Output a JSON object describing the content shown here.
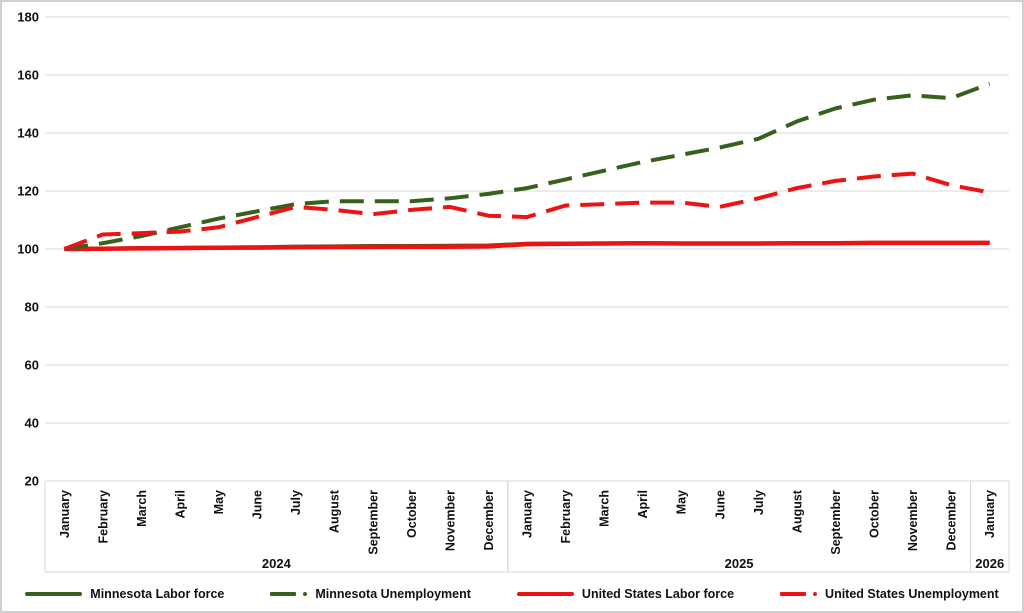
{
  "chart_data": {
    "type": "line",
    "title": "",
    "xlabel": "",
    "ylabel": "",
    "ylim": [
      20,
      180
    ],
    "y_ticks": [
      180,
      160,
      140,
      120,
      100,
      80,
      60,
      40,
      20
    ],
    "grid": true,
    "legend_position": "bottom",
    "x_categories": [
      "January",
      "February",
      "March",
      "April",
      "May",
      "June",
      "July",
      "August",
      "September",
      "October",
      "November",
      "December",
      "January",
      "February",
      "March",
      "April",
      "May",
      "June",
      "July",
      "August",
      "September",
      "October",
      "November",
      "December",
      "January"
    ],
    "year_groups": [
      {
        "label": "2024",
        "months": 12
      },
      {
        "label": "2025",
        "months": 12
      },
      {
        "label": "2026",
        "months": 1
      }
    ],
    "series": [
      {
        "name": "Minnesota Labor force",
        "color": "#36611c",
        "style": "solid",
        "values": [
          100,
          100.2,
          100.4,
          100.5,
          100.6,
          100.7,
          100.9,
          101,
          101.1,
          101.1,
          101.2,
          101.3,
          101.9,
          102,
          102,
          102.1,
          102,
          102,
          102,
          102.1,
          102.1,
          102.2,
          102.2,
          102.2,
          102.2
        ]
      },
      {
        "name": "Minnesota Unemployment",
        "color": "#36611c",
        "style": "dashed",
        "values": [
          100,
          102,
          104.5,
          107.5,
          110.5,
          113,
          115.5,
          116.5,
          116.5,
          116.5,
          117.5,
          119,
          121,
          124,
          127,
          130,
          132.5,
          135,
          138,
          144,
          148.5,
          151.5,
          153,
          152,
          157
        ]
      },
      {
        "name": "United States Labor force",
        "color": "#eb1414",
        "style": "solid",
        "values": [
          100,
          100.1,
          100.2,
          100.3,
          100.4,
          100.5,
          100.6,
          100.7,
          100.7,
          100.8,
          100.8,
          100.9,
          101.7,
          101.8,
          101.9,
          102,
          101.9,
          101.9,
          101.9,
          102,
          102,
          102.1,
          102.1,
          102.1,
          102.1
        ]
      },
      {
        "name": "United States Unemployment",
        "color": "#eb1414",
        "style": "dashed",
        "values": [
          100,
          105,
          105.5,
          106,
          107.5,
          111,
          114.5,
          113.5,
          112,
          113.5,
          114.5,
          111.5,
          111,
          115,
          115.5,
          116,
          116,
          114.5,
          117.5,
          121,
          123.5,
          125,
          126,
          122,
          119.5
        ]
      }
    ]
  },
  "style_tokens": {
    "gridline_color": "#d9d9d9",
    "divider_color": "#d9d9d9",
    "text_color": "#111111",
    "green": "#36611c",
    "red": "#eb1414"
  }
}
